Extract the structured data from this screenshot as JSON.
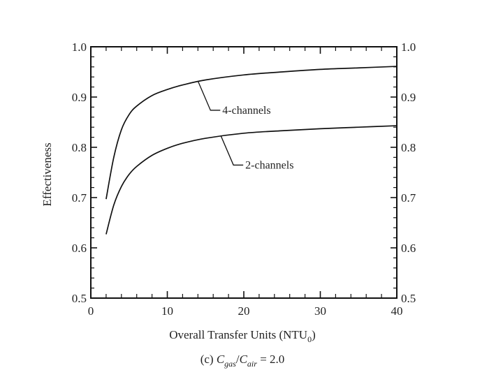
{
  "chart_data": {
    "type": "line",
    "xlabel": {
      "main": "Overall Transfer Units (NTU",
      "sub": "0",
      "close": ")"
    },
    "ylabel": "Effectiveness",
    "caption": {
      "prefix": "(c) ",
      "c1": "C",
      "sub1": "gas",
      "slash": "/",
      "c2": "C",
      "sub2": "air",
      "suffix": " = 2.0"
    },
    "xlim": [
      0,
      40
    ],
    "ylim": [
      0.5,
      1.0
    ],
    "x_ticks": [
      0,
      10,
      20,
      30,
      40
    ],
    "x_tick_labels": [
      "0",
      "10",
      "20",
      "30",
      "40"
    ],
    "y_ticks": [
      0.5,
      0.6,
      0.7,
      0.8,
      0.9,
      1.0
    ],
    "y_tick_labels": [
      "0.5",
      "0.6",
      "0.7",
      "0.8",
      "0.9",
      "1.0"
    ],
    "right_axis_tick_labels": [
      "0.5",
      "0.6",
      "0.7",
      "0.8",
      "0.9",
      "1.0"
    ],
    "grid": false,
    "series": [
      {
        "name": "4-channels",
        "x": [
          2,
          3,
          4,
          5,
          6,
          8,
          10,
          12,
          15,
          20,
          25,
          30,
          35,
          40
        ],
        "values": [
          0.697,
          0.78,
          0.835,
          0.865,
          0.882,
          0.903,
          0.915,
          0.924,
          0.934,
          0.944,
          0.95,
          0.955,
          0.958,
          0.961
        ]
      },
      {
        "name": "2-channels",
        "x": [
          2,
          3,
          4,
          5,
          6,
          8,
          10,
          12,
          15,
          20,
          25,
          30,
          35,
          40
        ],
        "values": [
          0.627,
          0.685,
          0.722,
          0.746,
          0.762,
          0.784,
          0.798,
          0.808,
          0.818,
          0.828,
          0.833,
          0.837,
          0.84,
          0.843
        ]
      }
    ],
    "annotations": [
      {
        "series": "4-channels",
        "text": "4-channels",
        "at_x": 14,
        "at_y": 0.932
      },
      {
        "series": "2-channels",
        "text": "2-channels",
        "at_x": 17,
        "at_y": 0.823
      }
    ]
  }
}
